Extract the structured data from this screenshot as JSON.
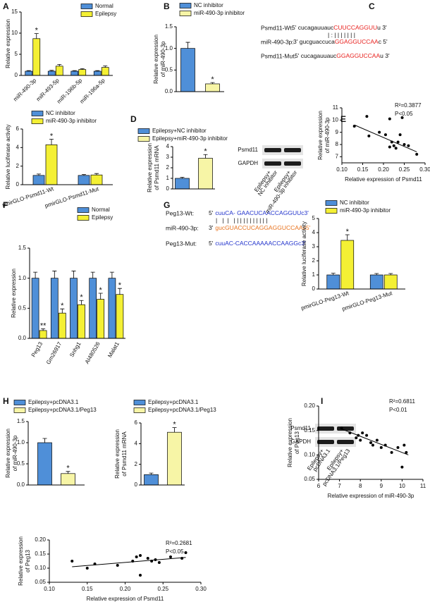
{
  "panel_labels": [
    "A",
    "B",
    "C",
    "D",
    "E",
    "F",
    "G",
    "H",
    "I"
  ],
  "panel_c": {
    "rows": [
      {
        "label": "Psmd11-Wt:",
        "parts": [
          "5' cucagauuauc",
          "CUUCCAGGUU",
          "u 3'"
        ]
      },
      {
        "label": "miR-490-3p:",
        "parts": [
          "3' gucguaccuca",
          "GGAGGUCCAA",
          "c 5'"
        ]
      },
      {
        "label": "Psmd11-Mut:",
        "parts": [
          "5' cucagauuauc",
          "GGAGGUCCAA",
          "u 3'"
        ]
      }
    ],
    "pairing": "| : | | | | | | |"
  },
  "panel_g": {
    "rows": [
      {
        "label": "Peg13-Wt:",
        "parts": [
          "5'",
          "cuuCA- GAACUCAACCAGGUUc3'"
        ]
      },
      {
        "label": "miR-490-3p:",
        "parts": [
          "3'",
          "gucGUACCUCAGGAGGUCCAAc5'"
        ]
      },
      {
        "label": "Peg13-Mut:",
        "parts": [
          "5'",
          "cuuAC-CACCAAAAACCAAGGc3'"
        ]
      }
    ],
    "pairing": "|   |  |   | | | | | | | | | | |"
  },
  "blots": [
    {
      "bands": [
        "Psmd11",
        "GAPDH"
      ],
      "lanes": [
        [
          "Epilepsy+",
          "NC inhibitor"
        ],
        [
          "Epilepsy+",
          "miR-490-3p inhibitor"
        ]
      ]
    },
    {
      "bands": [
        "Psmd11",
        "GAPDH"
      ],
      "lanes": [
        [
          "Epilepsy+",
          "pcDNA3.1"
        ],
        [
          "Epilepsy+",
          "pcDNA3.1/Peg13"
        ]
      ]
    }
  ],
  "chart_data": [
    {
      "type": "bar",
      "ylabel": "Relative expression",
      "categories": [
        "miR-490-3p",
        "miR-493-5p",
        "miR-196b-5p",
        "miR-196a-5p"
      ],
      "series": [
        {
          "name": "Normal",
          "color": "#4f8fd8",
          "values": [
            1,
            1,
            1,
            1
          ],
          "errors": [
            0.15,
            0.2,
            0.15,
            0.15
          ]
        },
        {
          "name": "Epilepsy",
          "color": "#f4f034",
          "values": [
            8.7,
            2.2,
            1.4,
            1.9
          ],
          "errors": [
            1.2,
            0.4,
            0.2,
            0.35
          ],
          "significance": [
            "*",
            null,
            null,
            null
          ]
        }
      ],
      "ylim": [
        0,
        15
      ],
      "yticks": [
        0,
        5,
        10,
        15
      ]
    },
    {
      "type": "bar",
      "ylabel": [
        "Relative expression",
        "of miR-490-3p"
      ],
      "series": [
        {
          "name": "NC inhibitor",
          "color": "#4f8fd8",
          "values": [
            1.0
          ],
          "errors": [
            0.14
          ]
        },
        {
          "name": "miR-490-3p inhibitor",
          "color": "#f7f5a6",
          "values": [
            0.18
          ],
          "errors": [
            0.03
          ],
          "significance": [
            "*"
          ]
        }
      ],
      "ylim": [
        0,
        1.5
      ],
      "yticks": [
        {
          "value": 0,
          "label": "0.0"
        },
        0.5,
        {
          "value": 1,
          "label": "1.0"
        },
        1.5
      ]
    },
    {
      "type": "bar",
      "ylabel": "Relative luciferase activity",
      "categories": [
        "pmirGLO-Psmd11-Wt",
        "pmirGLO-Psmd11-Mut"
      ],
      "series": [
        {
          "name": "NC inhibitor",
          "color": "#4f8fd8",
          "values": [
            1.0,
            1.0
          ],
          "errors": [
            0.15,
            0.1
          ]
        },
        {
          "name": "miR-490-3p inhibitor",
          "color": "#f4f034",
          "values": [
            4.3,
            1.05
          ],
          "errors": [
            0.6,
            0.15
          ],
          "significance": [
            "*",
            null
          ]
        }
      ],
      "ylim": [
        0,
        6
      ],
      "yticks": [
        0,
        2,
        4,
        6
      ]
    },
    {
      "type": "bar",
      "ylabel": [
        "Relative expression",
        "of Psmd11 mRNA"
      ],
      "series": [
        {
          "name": "Epilepsy+NC inhibitor",
          "color": "#4f8fd8",
          "values": [
            1.0
          ],
          "errors": [
            0.1
          ]
        },
        {
          "name": "Epilepsy+miR-490-3p inhibitor",
          "color": "#f7f5a6",
          "values": [
            2.9
          ],
          "errors": [
            0.35
          ],
          "significance": [
            "*"
          ]
        }
      ],
      "ylim": [
        0,
        4
      ],
      "yticks": [
        0,
        1,
        2,
        3,
        4
      ]
    },
    {
      "type": "scatter",
      "xlabel": "Relative expression of Psmd11",
      "ylabel": [
        "Relative expression",
        "of miR-490-3p"
      ],
      "annotations": [
        "R²=0.3877",
        "P<0.05"
      ],
      "x": [
        0.13,
        0.16,
        0.165,
        0.19,
        0.205,
        0.215,
        0.215,
        0.22,
        0.225,
        0.23,
        0.235,
        0.24,
        0.245,
        0.25,
        0.26,
        0.28
      ],
      "values": [
        9.5,
        10.3,
        8.7,
        9.0,
        8.8,
        10.1,
        7.8,
        8.2,
        7.9,
        7.7,
        8.2,
        8.8,
        10.2,
        8.0,
        7.9,
        7.2
      ],
      "fit": {
        "x": [
          0.13,
          0.28
        ],
        "values": [
          9.6,
          7.4
        ]
      },
      "xlim": [
        0.1,
        0.3
      ],
      "xticks": [
        {
          "value": 0.1,
          "label": "0.10"
        },
        0.15,
        {
          "value": 0.2,
          "label": "0.20"
        },
        0.25,
        {
          "value": 0.3,
          "label": "0.30"
        }
      ],
      "ylim": [
        6.5,
        11
      ],
      "yticks": [
        7,
        8,
        9,
        10,
        11
      ]
    },
    {
      "type": "bar",
      "ylabel": "Relative expression",
      "categories": [
        "Peg13",
        "Gm26917",
        "Snhg1",
        "AI480526",
        "Malat1"
      ],
      "series": [
        {
          "name": "Normal",
          "color": "#4f8fd8",
          "values": [
            1,
            1,
            1,
            1,
            1
          ],
          "errors": [
            0.1,
            0.12,
            0.12,
            0.1,
            0.1
          ]
        },
        {
          "name": "Epilepsy",
          "color": "#f4f034",
          "values": [
            0.13,
            0.42,
            0.56,
            0.65,
            0.73
          ],
          "errors": [
            0.03,
            0.07,
            0.07,
            0.1,
            0.1
          ],
          "significance": [
            "**",
            "*",
            "*",
            "*",
            "*"
          ]
        }
      ],
      "ylim": [
        0,
        1.5
      ],
      "yticks": [
        {
          "value": 0,
          "label": "0.0"
        },
        0.5,
        {
          "value": 1,
          "label": "1.0"
        },
        1.5
      ]
    },
    {
      "type": "bar",
      "ylabel": "Relative luciferase activity",
      "categories": [
        "pmirGLO-Peg13-Wt",
        "pmirGLO-Peg13-Mut"
      ],
      "series": [
        {
          "name": "NC inhibitor",
          "color": "#4f8fd8",
          "values": [
            1.0,
            1.0
          ],
          "errors": [
            0.12,
            0.1
          ]
        },
        {
          "name": "miR-490-3p inhibitor",
          "color": "#f4f034",
          "values": [
            3.45,
            1.0
          ],
          "errors": [
            0.4,
            0.1
          ],
          "significance": [
            "*",
            null
          ]
        }
      ],
      "ylim": [
        0,
        5
      ],
      "yticks": [
        0,
        1,
        2,
        3,
        4,
        5
      ]
    },
    {
      "type": "bar",
      "ylabel": [
        "Relative expression",
        "of miR-490-3p"
      ],
      "series": [
        {
          "name": "Epilepsy+pcDNA3.1",
          "color": "#4f8fd8",
          "values": [
            1.0
          ],
          "errors": [
            0.1
          ]
        },
        {
          "name": "Epilepsy+pcDNA3.1/Peg13",
          "color": "#f7f5a6",
          "values": [
            0.27
          ],
          "errors": [
            0.05
          ],
          "significance": [
            "*"
          ]
        }
      ],
      "ylim": [
        0,
        1.5
      ],
      "yticks": [
        {
          "value": 0,
          "label": "0.0"
        },
        0.5,
        {
          "value": 1,
          "label": "1.0"
        },
        1.5
      ]
    },
    {
      "type": "bar",
      "ylabel": [
        "Relative expression",
        "of Psmd11 mRNA"
      ],
      "series": [
        {
          "name": "Epilepsy+pcDNA3.1",
          "color": "#4f8fd8",
          "values": [
            1.0
          ],
          "errors": [
            0.15
          ]
        },
        {
          "name": "Epilepsy+pcDNA3.1/Peg13",
          "color": "#f7f5a6",
          "values": [
            5.1
          ],
          "errors": [
            0.45
          ],
          "significance": [
            "*"
          ]
        }
      ],
      "ylim": [
        0,
        6
      ],
      "yticks": [
        0,
        2,
        4,
        6
      ]
    },
    {
      "type": "scatter",
      "xlabel": "Relative expression of miR-490-3p",
      "ylabel": [
        "Relative expression",
        "of Peg13"
      ],
      "annotations": [
        "R²=0.6811",
        "P<0.01"
      ],
      "x": [
        7.1,
        7.5,
        7.8,
        7.9,
        8.0,
        8.1,
        8.3,
        8.5,
        8.6,
        8.8,
        9.0,
        9.2,
        9.5,
        9.8,
        10.0,
        10.1,
        10.2
      ],
      "values": [
        0.155,
        0.145,
        0.135,
        0.14,
        0.13,
        0.145,
        0.14,
        0.125,
        0.12,
        0.13,
        0.115,
        0.12,
        0.105,
        0.115,
        0.075,
        0.12,
        0.105
      ],
      "fit": {
        "x": [
          7.1,
          10.3
        ],
        "values": [
          0.153,
          0.1
        ]
      },
      "xlim": [
        6,
        11
      ],
      "xticks": [
        6,
        7,
        8,
        9,
        10,
        11
      ],
      "ylim": [
        0.05,
        0.2
      ],
      "yticks": [
        0.05,
        {
          "value": 0.1,
          "label": "0.10"
        },
        0.15,
        {
          "value": 0.2,
          "label": "0.20"
        }
      ]
    },
    {
      "type": "scatter",
      "xlabel": "Relative expression of Psmd11",
      "ylabel": [
        "Relative expression",
        "of Peg13"
      ],
      "annotations": [
        "R²=0.2681",
        "P<0.05"
      ],
      "x": [
        0.13,
        0.15,
        0.16,
        0.19,
        0.21,
        0.215,
        0.22,
        0.22,
        0.23,
        0.235,
        0.24,
        0.245,
        0.26,
        0.275,
        0.28
      ],
      "values": [
        0.125,
        0.1,
        0.115,
        0.11,
        0.125,
        0.14,
        0.145,
        0.075,
        0.135,
        0.125,
        0.13,
        0.12,
        0.14,
        0.135,
        0.155
      ],
      "fit": {
        "x": [
          0.13,
          0.28
        ],
        "values": [
          0.105,
          0.138
        ]
      },
      "xlim": [
        0.1,
        0.3
      ],
      "xticks": [
        {
          "value": 0.1,
          "label": "0.10"
        },
        0.15,
        {
          "value": 0.2,
          "label": "0.20"
        },
        0.25,
        {
          "value": 0.3,
          "label": "0.30"
        }
      ],
      "ylim": [
        0.05,
        0.2
      ],
      "yticks": [
        0.05,
        {
          "value": 0.1,
          "label": "0.10"
        },
        0.15,
        {
          "value": 0.2,
          "label": "0.20"
        }
      ]
    }
  ]
}
